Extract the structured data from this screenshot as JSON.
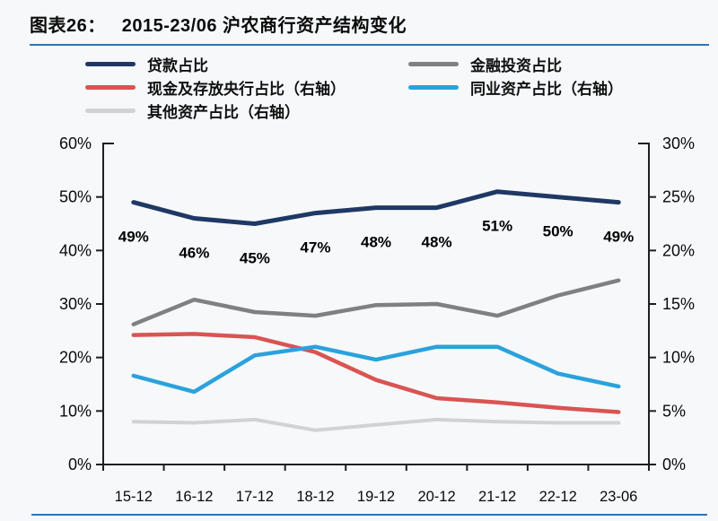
{
  "page": {
    "title_prefix": "图表26：",
    "title_text": "2015-23/06 沪农商行资产结构变化",
    "accent_color": "#2e74b5"
  },
  "chart_data": {
    "type": "line",
    "title": "2015-23/06 沪农商行资产结构变化",
    "categories": [
      "15-12",
      "16-12",
      "17-12",
      "18-12",
      "19-12",
      "20-12",
      "21-12",
      "22-12",
      "23-06"
    ],
    "left_axis": {
      "min": 0,
      "max": 60,
      "tick_labels": [
        "60%",
        "50%",
        "40%",
        "30%",
        "20%",
        "10%",
        "0%"
      ]
    },
    "right_axis": {
      "min": 0,
      "max": 30,
      "tick_labels": [
        "30%",
        "25%",
        "20%",
        "15%",
        "10%",
        "5%",
        "0%"
      ]
    },
    "grid": false,
    "legend_position": "top",
    "axis_color": "#1f1f1f",
    "series": [
      {
        "name": "贷款占比",
        "axis": "left",
        "color": "#1f3864",
        "width": 5,
        "values": [
          49,
          46,
          45,
          47,
          48,
          48,
          51,
          50,
          49
        ],
        "point_labels": [
          "49%",
          "46%",
          "45%",
          "47%",
          "48%",
          "48%",
          "51%",
          "50%",
          "49%"
        ]
      },
      {
        "name": "金融投资占比",
        "axis": "left",
        "color": "#808084",
        "width": 4.5,
        "values": [
          26.2,
          30.8,
          28.5,
          27.8,
          29.8,
          30.0,
          27.8,
          31.6,
          34.4
        ]
      },
      {
        "name": "现金及存放央行占比（右轴）",
        "axis": "right",
        "color": "#d95452",
        "width": 4.5,
        "values": [
          12.1,
          12.2,
          11.9,
          10.5,
          7.9,
          6.2,
          5.8,
          5.3,
          4.9
        ]
      },
      {
        "name": "同业资产占比（右轴）",
        "axis": "right",
        "color": "#2aa2dc",
        "width": 4.5,
        "values": [
          8.3,
          6.8,
          10.2,
          11.0,
          9.8,
          11.0,
          11.0,
          8.5,
          7.3
        ]
      },
      {
        "name": "其他资产占比（右轴）",
        "axis": "right",
        "color": "#d2d2d6",
        "width": 4,
        "values": [
          4.0,
          3.9,
          4.2,
          3.2,
          3.7,
          4.2,
          4.0,
          3.9,
          3.9
        ]
      }
    ]
  }
}
